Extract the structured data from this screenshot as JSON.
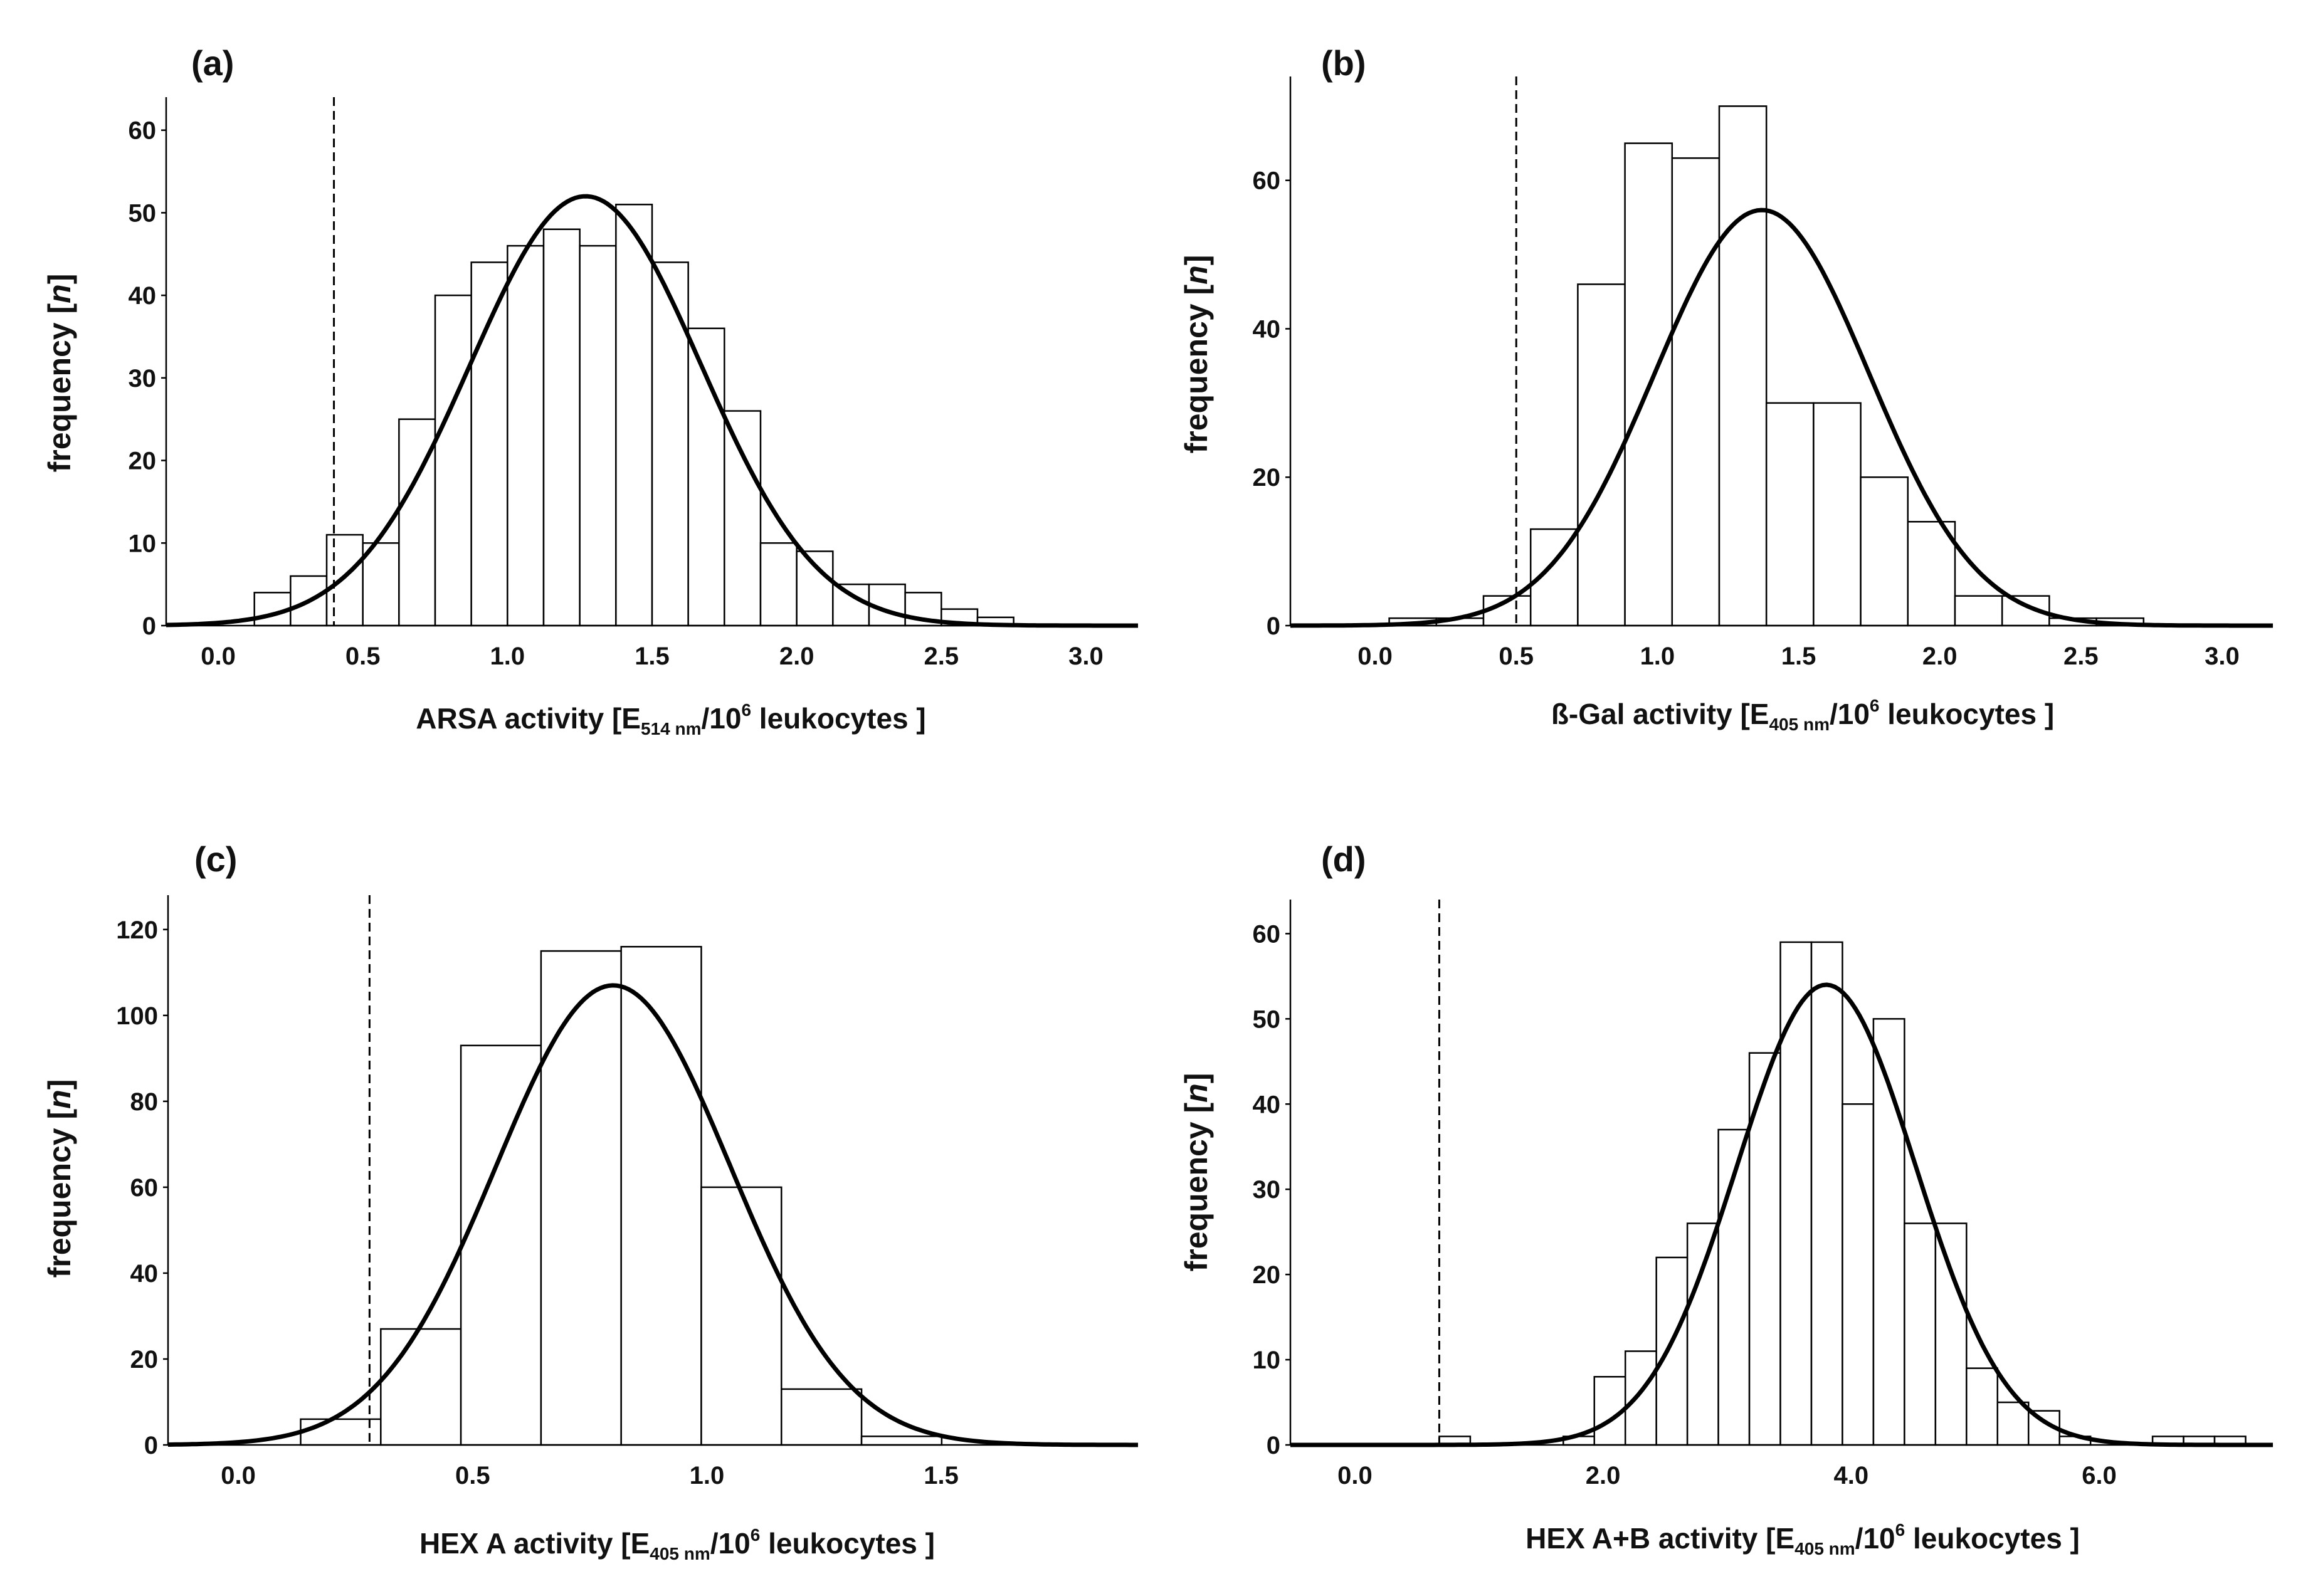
{
  "chart_data": [
    {
      "id": "a",
      "type": "bar",
      "panel_label": "(a)",
      "title": "",
      "xlabel": {
        "pre": "ARSA activity [E",
        "sub": "514 nm",
        "mid": "/10",
        "sup": "6",
        "post": " leukocytes ]"
      },
      "ylabel": {
        "pre": "frequency [",
        "ital": "n",
        "post": "]"
      },
      "xlim": [
        -0.18,
        3.18
      ],
      "ylim": [
        0,
        64
      ],
      "xticks": [
        0.0,
        0.5,
        1.0,
        1.5,
        2.0,
        2.5,
        3.0
      ],
      "xtick_labels": [
        "0.0",
        "0.5",
        "1.0",
        "1.5",
        "2.0",
        "2.5",
        "3.0"
      ],
      "yticks": [
        0,
        10,
        20,
        30,
        40,
        50,
        60
      ],
      "ytick_labels": [
        "0",
        "10",
        "20",
        "30",
        "40",
        "50",
        "60"
      ],
      "bin_width": 0.125,
      "bins": [
        0.125,
        0.25,
        0.375,
        0.5,
        0.625,
        0.75,
        0.875,
        1.0,
        1.125,
        1.25,
        1.375,
        1.5,
        1.625,
        1.75,
        1.875,
        2.0,
        2.125,
        2.25,
        2.375,
        2.5,
        2.625
      ],
      "values": [
        4,
        6,
        11,
        10,
        25,
        40,
        44,
        46,
        48,
        46,
        51,
        44,
        36,
        26,
        10,
        9,
        5,
        5,
        4,
        2,
        1
      ],
      "cutoff": 0.4,
      "normal_curve": {
        "mean": 1.27,
        "sd": 0.4,
        "peak": 52
      }
    },
    {
      "id": "b",
      "type": "bar",
      "panel_label": "(b)",
      "title": "",
      "xlabel": {
        "pre": "ß-Gal activity [E",
        "sub": "405 nm",
        "mid": "/10",
        "sup": "6",
        "post": " leukocytes ]"
      },
      "ylabel": {
        "pre": "frequency [",
        "ital": "n",
        "post": "]"
      },
      "xlim": [
        -0.3,
        3.18
      ],
      "ylim": [
        0,
        74
      ],
      "xticks": [
        0.0,
        0.5,
        1.0,
        1.5,
        2.0,
        2.5,
        3.0
      ],
      "xtick_labels": [
        "0.0",
        "0.5",
        "1.0",
        "1.5",
        "2.0",
        "2.5",
        "3.0"
      ],
      "yticks": [
        0,
        20,
        40,
        60
      ],
      "ytick_labels": [
        "0",
        "20",
        "40",
        "60"
      ],
      "bin_width": 0.167,
      "bins": [
        0.05,
        0.217,
        0.384,
        0.551,
        0.718,
        0.885,
        1.052,
        1.219,
        1.386,
        1.553,
        1.72,
        1.887,
        2.054,
        2.221,
        2.388,
        2.555,
        2.722
      ],
      "values": [
        1,
        1,
        4,
        13,
        46,
        65,
        63,
        70,
        30,
        30,
        20,
        14,
        4,
        4,
        1,
        1,
        0
      ],
      "cutoff": 0.5,
      "normal_curve": {
        "mean": 1.37,
        "sd": 0.38,
        "peak": 56
      }
    },
    {
      "id": "c",
      "type": "bar",
      "panel_label": "(c)",
      "title": "",
      "xlabel": {
        "pre": "HEX A activity [E",
        "sub": "405 nm",
        "mid": "/10",
        "sup": "6",
        "post": " leukocytes ]"
      },
      "ylabel": {
        "pre": "frequency [",
        "ital": "n",
        "post": "]"
      },
      "xlim": [
        -0.15,
        1.92
      ],
      "ylim": [
        0,
        128
      ],
      "xticks": [
        0.0,
        0.5,
        1.0,
        1.5
      ],
      "xtick_labels": [
        "0.0",
        "0.5",
        "1.0",
        "1.5"
      ],
      "yticks": [
        0,
        20,
        40,
        60,
        80,
        100,
        120
      ],
      "ytick_labels": [
        "0",
        "20",
        "40",
        "60",
        "80",
        "100",
        "120"
      ],
      "bin_width": 0.171,
      "bins": [
        0.133,
        0.304,
        0.475,
        0.646,
        0.817,
        0.988,
        1.159,
        1.33,
        1.501
      ],
      "values": [
        6,
        27,
        93,
        115,
        116,
        60,
        13,
        2,
        0
      ],
      "cutoff": 0.28,
      "normal_curve": {
        "mean": 0.8,
        "sd": 0.25,
        "peak": 107
      }
    },
    {
      "id": "d",
      "type": "bar",
      "panel_label": "(d)",
      "title": "",
      "xlabel": {
        "pre": "HEX A+B activity [E",
        "sub": "405 nm",
        "mid": "/10",
        "sup": "6",
        "post": " leukocytes ]"
      },
      "ylabel": {
        "pre": "frequency [",
        "ital": "n",
        "post": "]"
      },
      "xlim": [
        -0.52,
        7.4
      ],
      "ylim": [
        0,
        64
      ],
      "xticks": [
        0.0,
        2.0,
        4.0,
        6.0
      ],
      "xtick_labels": [
        "0.0",
        "2.0",
        "4.0",
        "6.0"
      ],
      "yticks": [
        0,
        10,
        20,
        30,
        40,
        50,
        60
      ],
      "ytick_labels": [
        "0",
        "10",
        "20",
        "30",
        "40",
        "50",
        "60"
      ],
      "bin_width": 0.25,
      "bins": [
        0.68,
        1.68,
        1.93,
        2.18,
        2.43,
        2.68,
        2.93,
        3.18,
        3.43,
        3.68,
        3.93,
        4.18,
        4.43,
        4.68,
        4.93,
        5.18,
        5.43,
        5.68,
        6.43,
        6.68,
        6.93
      ],
      "values": [
        1,
        1,
        8,
        11,
        22,
        26,
        37,
        46,
        59,
        59,
        40,
        50,
        26,
        26,
        9,
        5,
        4,
        1,
        1,
        1,
        1
      ],
      "cutoff": 0.68,
      "normal_curve": {
        "mean": 3.8,
        "sd": 0.72,
        "peak": 54
      }
    }
  ]
}
